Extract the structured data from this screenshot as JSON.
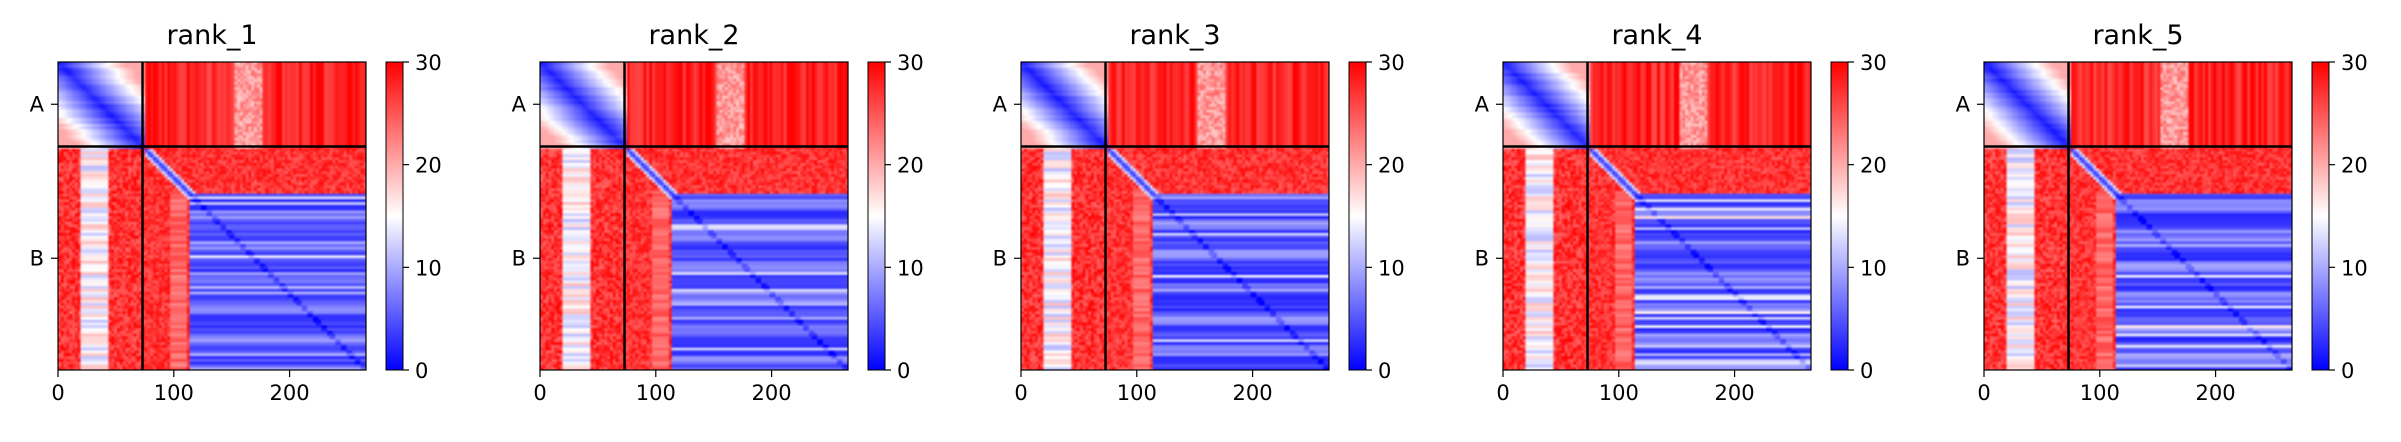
{
  "chart_data": {
    "type": "heatmap",
    "metric_colormap": {
      "low": "#0000ff",
      "mid": "#ffffff",
      "high": "#ff0000"
    },
    "grid": false,
    "chains": [
      {
        "label": "A",
        "start": 0,
        "end": 73
      },
      {
        "label": "B",
        "start": 73,
        "end": 266
      }
    ],
    "sequence_length": 266,
    "x_ticks": [
      0,
      100,
      200
    ],
    "x_tick_labels": [
      "0",
      "100",
      "200"
    ],
    "y_tick_labels": [
      "A",
      "B"
    ],
    "colorbar": {
      "vmin": 0,
      "vmax": 30,
      "ticks": [
        0,
        10,
        20,
        30
      ],
      "tick_labels": [
        "0",
        "10",
        "20",
        "30"
      ]
    },
    "panels": [
      {
        "title": "rank_1"
      },
      {
        "title": "rank_2"
      },
      {
        "title": "rank_3"
      },
      {
        "title": "rank_4"
      },
      {
        "title": "rank_5"
      }
    ]
  }
}
